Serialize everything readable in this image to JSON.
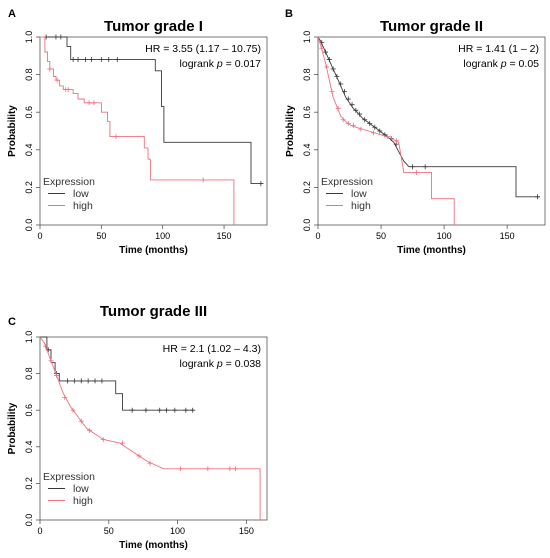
{
  "chart_data": [
    {
      "type": "line",
      "panel_label": "A",
      "title": "Tumor grade I",
      "xlabel": "Time (months)",
      "ylabel": "Probability",
      "xlim": [
        0,
        185
      ],
      "ylim": [
        0,
        1
      ],
      "xticks": [
        0,
        50,
        100,
        150
      ],
      "yticks": [
        0.0,
        0.2,
        0.4,
        0.6,
        0.8,
        1.0
      ],
      "stat_hr": "HR = 3.55 (1.17 – 10.75)",
      "stat_p_prefix": "logrank ",
      "stat_p_var": "p",
      "stat_p_value": " = 0.017",
      "legend_title": "Expression",
      "legend_position": "bottom-left",
      "grid": false,
      "series": [
        {
          "name": "low",
          "color": "#3a3a3a",
          "steps": [
            [
              0,
              1.0
            ],
            [
              22,
              1.0
            ],
            [
              22,
              0.95
            ],
            [
              25,
              0.95
            ],
            [
              25,
              0.88
            ],
            [
              65,
              0.88
            ],
            [
              94,
              0.88
            ],
            [
              94,
              0.82
            ],
            [
              99,
              0.82
            ],
            [
              99,
              0.63
            ],
            [
              101,
              0.63
            ],
            [
              101,
              0.44
            ],
            [
              172,
              0.44
            ],
            [
              172,
              0.22
            ],
            [
              182,
              0.22
            ]
          ],
          "censors": [
            [
              5,
              1.0
            ],
            [
              13,
              1.0
            ],
            [
              17,
              1.0
            ],
            [
              27,
              0.88
            ],
            [
              31,
              0.88
            ],
            [
              37,
              0.88
            ],
            [
              42,
              0.88
            ],
            [
              50,
              0.88
            ],
            [
              56,
              0.88
            ],
            [
              63,
              0.88
            ],
            [
              180,
              0.22
            ]
          ]
        },
        {
          "name": "high",
          "color": "#f07080",
          "steps": [
            [
              0,
              1.0
            ],
            [
              4,
              1.0
            ],
            [
              4,
              0.92
            ],
            [
              6,
              0.92
            ],
            [
              6,
              0.87
            ],
            [
              8,
              0.87
            ],
            [
              8,
              0.83
            ],
            [
              11,
              0.83
            ],
            [
              11,
              0.79
            ],
            [
              13,
              0.79
            ],
            [
              13,
              0.77
            ],
            [
              16,
              0.77
            ],
            [
              16,
              0.74
            ],
            [
              19,
              0.74
            ],
            [
              19,
              0.72
            ],
            [
              27,
              0.72
            ],
            [
              27,
              0.7
            ],
            [
              31,
              0.7
            ],
            [
              31,
              0.67
            ],
            [
              36,
              0.67
            ],
            [
              36,
              0.65
            ],
            [
              50,
              0.65
            ],
            [
              50,
              0.6
            ],
            [
              55,
              0.6
            ],
            [
              55,
              0.55
            ],
            [
              57,
              0.55
            ],
            [
              57,
              0.47
            ],
            [
              85,
              0.47
            ],
            [
              85,
              0.41
            ],
            [
              88,
              0.41
            ],
            [
              88,
              0.35
            ],
            [
              90,
              0.35
            ],
            [
              90,
              0.24
            ],
            [
              158,
              0.24
            ],
            [
              158,
              0.0
            ]
          ],
          "censors": [
            [
              8,
              0.83
            ],
            [
              14,
              0.77
            ],
            [
              21,
              0.72
            ],
            [
              23,
              0.72
            ],
            [
              40,
              0.65
            ],
            [
              44,
              0.65
            ],
            [
              62,
              0.47
            ],
            [
              133,
              0.24
            ]
          ]
        }
      ]
    },
    {
      "type": "line",
      "panel_label": "B",
      "title": "Tumor grade II",
      "xlabel": "Time (months)",
      "ylabel": "Probability",
      "xlim": [
        0,
        180
      ],
      "ylim": [
        0,
        1
      ],
      "xticks": [
        0,
        50,
        100,
        150
      ],
      "yticks": [
        0.0,
        0.2,
        0.4,
        0.6,
        0.8,
        1.0
      ],
      "stat_hr": "HR = 1.41 (1 – 2)",
      "stat_p_prefix": "logrank ",
      "stat_p_var": "p",
      "stat_p_value": " = 0.05",
      "legend_title": "Expression",
      "legend_position": "bottom-left",
      "grid": false,
      "series": [
        {
          "name": "low",
          "color": "#3a3a3a",
          "steps": [
            [
              0,
              1.0
            ],
            [
              2,
              0.98
            ],
            [
              4,
              0.95
            ],
            [
              6,
              0.92
            ],
            [
              8,
              0.89
            ],
            [
              10,
              0.86
            ],
            [
              12,
              0.83
            ],
            [
              14,
              0.8
            ],
            [
              16,
              0.77
            ],
            [
              18,
              0.74
            ],
            [
              20,
              0.71
            ],
            [
              22,
              0.68
            ],
            [
              25,
              0.65
            ],
            [
              28,
              0.62
            ],
            [
              31,
              0.6
            ],
            [
              35,
              0.57
            ],
            [
              39,
              0.55
            ],
            [
              43,
              0.53
            ],
            [
              47,
              0.51
            ],
            [
              51,
              0.49
            ],
            [
              55,
              0.47
            ],
            [
              60,
              0.44
            ],
            [
              64,
              0.39
            ],
            [
              68,
              0.34
            ],
            [
              72,
              0.31
            ],
            [
              157,
              0.31
            ],
            [
              157,
              0.15
            ],
            [
              176,
              0.15
            ]
          ],
          "censors": [
            [
              3,
              0.97
            ],
            [
              6,
              0.92
            ],
            [
              9,
              0.88
            ],
            [
              12,
              0.83
            ],
            [
              15,
              0.79
            ],
            [
              18,
              0.75
            ],
            [
              21,
              0.71
            ],
            [
              24,
              0.67
            ],
            [
              27,
              0.64
            ],
            [
              30,
              0.61
            ],
            [
              33,
              0.59
            ],
            [
              37,
              0.56
            ],
            [
              41,
              0.54
            ],
            [
              45,
              0.52
            ],
            [
              49,
              0.5
            ],
            [
              53,
              0.48
            ],
            [
              58,
              0.46
            ],
            [
              62,
              0.43
            ],
            [
              75,
              0.31
            ],
            [
              85,
              0.31
            ],
            [
              174,
              0.15
            ]
          ]
        },
        {
          "name": "high",
          "color": "#f07080",
          "steps": [
            [
              0,
              1.0
            ],
            [
              2,
              0.96
            ],
            [
              4,
              0.91
            ],
            [
              6,
              0.86
            ],
            [
              8,
              0.8
            ],
            [
              10,
              0.74
            ],
            [
              12,
              0.68
            ],
            [
              15,
              0.63
            ],
            [
              18,
              0.58
            ],
            [
              22,
              0.55
            ],
            [
              26,
              0.53
            ],
            [
              30,
              0.52
            ],
            [
              40,
              0.5
            ],
            [
              50,
              0.48
            ],
            [
              58,
              0.46
            ],
            [
              64,
              0.44
            ],
            [
              68,
              0.28
            ],
            [
              90,
              0.28
            ],
            [
              90,
              0.14
            ],
            [
              108,
              0.14
            ],
            [
              108,
              0.0
            ]
          ],
          "censors": [
            [
              3,
              0.94
            ],
            [
              7,
              0.84
            ],
            [
              11,
              0.71
            ],
            [
              16,
              0.62
            ],
            [
              20,
              0.56
            ],
            [
              24,
              0.54
            ],
            [
              28,
              0.53
            ],
            [
              34,
              0.51
            ],
            [
              44,
              0.49
            ],
            [
              55,
              0.47
            ],
            [
              62,
              0.45
            ],
            [
              78,
              0.28
            ]
          ]
        }
      ]
    },
    {
      "type": "line",
      "panel_label": "C",
      "title": "Tumor grade III",
      "xlabel": "Time (months)",
      "ylabel": "Probability",
      "xlim": [
        0,
        165
      ],
      "ylim": [
        0,
        1
      ],
      "xticks": [
        0,
        50,
        100,
        150
      ],
      "yticks": [
        0.0,
        0.2,
        0.4,
        0.6,
        0.8,
        1.0
      ],
      "stat_hr": "HR = 2.1 (1.02 – 4.3)",
      "stat_p_prefix": "logrank ",
      "stat_p_var": "p",
      "stat_p_value": " = 0.038",
      "legend_title": "Expression",
      "legend_position": "bottom-left",
      "grid": false,
      "series": [
        {
          "name": "low",
          "color": "#3a3a3a",
          "steps": [
            [
              0,
              1.0
            ],
            [
              5,
              1.0
            ],
            [
              5,
              0.93
            ],
            [
              8,
              0.93
            ],
            [
              8,
              0.86
            ],
            [
              11,
              0.86
            ],
            [
              11,
              0.8
            ],
            [
              14,
              0.8
            ],
            [
              14,
              0.76
            ],
            [
              55,
              0.76
            ],
            [
              55,
              0.69
            ],
            [
              60,
              0.69
            ],
            [
              60,
              0.6
            ],
            [
              112,
              0.6
            ]
          ],
          "censors": [
            [
              6,
              0.93
            ],
            [
              12,
              0.8
            ],
            [
              20,
              0.76
            ],
            [
              25,
              0.76
            ],
            [
              30,
              0.76
            ],
            [
              35,
              0.76
            ],
            [
              40,
              0.76
            ],
            [
              45,
              0.76
            ],
            [
              67,
              0.6
            ],
            [
              77,
              0.6
            ],
            [
              87,
              0.6
            ],
            [
              92,
              0.6
            ],
            [
              98,
              0.6
            ],
            [
              106,
              0.6
            ],
            [
              111,
              0.6
            ]
          ]
        },
        {
          "name": "high",
          "color": "#f07080",
          "steps": [
            [
              0,
              1.0
            ],
            [
              3,
              0.97
            ],
            [
              5,
              0.93
            ],
            [
              7,
              0.89
            ],
            [
              9,
              0.85
            ],
            [
              11,
              0.81
            ],
            [
              13,
              0.77
            ],
            [
              15,
              0.73
            ],
            [
              17,
              0.69
            ],
            [
              20,
              0.65
            ],
            [
              22,
              0.62
            ],
            [
              25,
              0.59
            ],
            [
              28,
              0.56
            ],
            [
              31,
              0.53
            ],
            [
              34,
              0.5
            ],
            [
              38,
              0.48
            ],
            [
              42,
              0.46
            ],
            [
              46,
              0.44
            ],
            [
              58,
              0.42
            ],
            [
              66,
              0.38
            ],
            [
              70,
              0.36
            ],
            [
              74,
              0.34
            ],
            [
              78,
              0.32
            ],
            [
              84,
              0.3
            ],
            [
              90,
              0.28
            ],
            [
              160,
              0.28
            ],
            [
              160,
              0.0
            ]
          ],
          "censors": [
            [
              4,
              0.95
            ],
            [
              8,
              0.87
            ],
            [
              12,
              0.79
            ],
            [
              18,
              0.67
            ],
            [
              24,
              0.6
            ],
            [
              30,
              0.54
            ],
            [
              36,
              0.49
            ],
            [
              46,
              0.44
            ],
            [
              60,
              0.42
            ],
            [
              72,
              0.35
            ],
            [
              80,
              0.31
            ],
            [
              102,
              0.28
            ],
            [
              122,
              0.28
            ],
            [
              138,
              0.28
            ],
            [
              142,
              0.28
            ]
          ]
        }
      ]
    }
  ]
}
